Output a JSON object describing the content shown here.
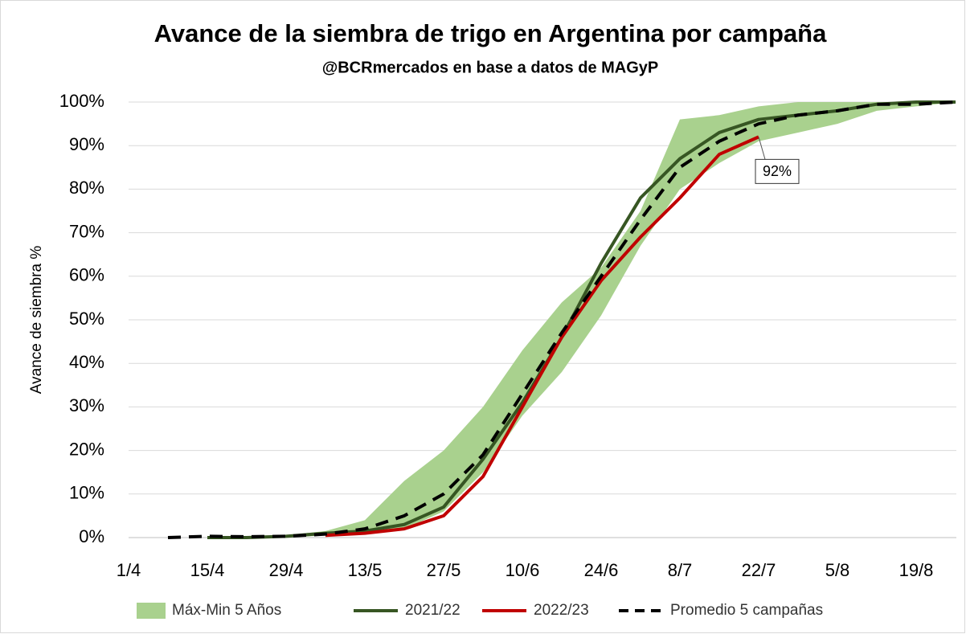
{
  "chart_data": {
    "type": "line",
    "title": "Avance de la siembra de trigo en Argentina por campaña",
    "subtitle": "@BCRmercados en base a datos de MAGyP",
    "y_label": "Avance de siembra %",
    "categories": [
      "1/4",
      null,
      "15/4",
      null,
      "29/4",
      null,
      "13/5",
      null,
      "27/5",
      null,
      "10/6",
      null,
      "24/6",
      null,
      "8/7",
      null,
      "22/7",
      null,
      "5/8",
      null,
      "19/8",
      null
    ],
    "ylim": [
      0,
      100
    ],
    "yticks": [
      {
        "value": 0,
        "label": "0%"
      },
      {
        "value": 10,
        "label": "10%"
      },
      {
        "value": 20,
        "label": "20%"
      },
      {
        "value": 30,
        "label": "30%"
      },
      {
        "value": 40,
        "label": "40%"
      },
      {
        "value": 50,
        "label": "50%"
      },
      {
        "value": 60,
        "label": "60%"
      },
      {
        "value": 70,
        "label": "70%"
      },
      {
        "value": 80,
        "label": "80%"
      },
      {
        "value": 90,
        "label": "90%"
      },
      {
        "value": 100,
        "label": "100%"
      }
    ],
    "grid": true,
    "legend": "bottom",
    "series": [
      {
        "name": "Máx-Min 5 Años",
        "color": "#a9d18e",
        "style": "band",
        "low": [
          null,
          null,
          0,
          0,
          0,
          0.5,
          1,
          2,
          6,
          15,
          28,
          38,
          51,
          67,
          80,
          86,
          91,
          93,
          95,
          98,
          99,
          100
        ],
        "high": [
          null,
          null,
          0,
          0,
          0.5,
          1.5,
          4,
          13,
          20,
          30,
          43,
          54,
          62,
          75,
          96,
          97,
          99,
          100,
          100,
          100,
          100,
          100
        ]
      },
      {
        "name": "2021/22",
        "color": "#375623",
        "style": "solid",
        "values": [
          null,
          null,
          0,
          0,
          0.3,
          1,
          1.5,
          3,
          7,
          18,
          31,
          46,
          63,
          78,
          87,
          93,
          96,
          97,
          98,
          99.5,
          100,
          100
        ]
      },
      {
        "name": "2022/23",
        "color": "#c00000",
        "style": "solid",
        "values": [
          null,
          null,
          null,
          null,
          null,
          0.5,
          1,
          2,
          5,
          14,
          30,
          46,
          59,
          69,
          78,
          88,
          92,
          null,
          null,
          null,
          null,
          null
        ],
        "value_labels": [
          null,
          null,
          null,
          null,
          null,
          null,
          null,
          null,
          null,
          null,
          null,
          null,
          null,
          null,
          null,
          null,
          "92%",
          null,
          null,
          null,
          null,
          null
        ]
      },
      {
        "name": "Promedio 5 campañas",
        "color": "#000000",
        "style": "dashed",
        "values": [
          null,
          0,
          0.3,
          0.2,
          0.3,
          0.8,
          2,
          5,
          10,
          19,
          33,
          47,
          60,
          73,
          85,
          91,
          95,
          97,
          98,
          99.5,
          99.5,
          100
        ]
      }
    ]
  }
}
